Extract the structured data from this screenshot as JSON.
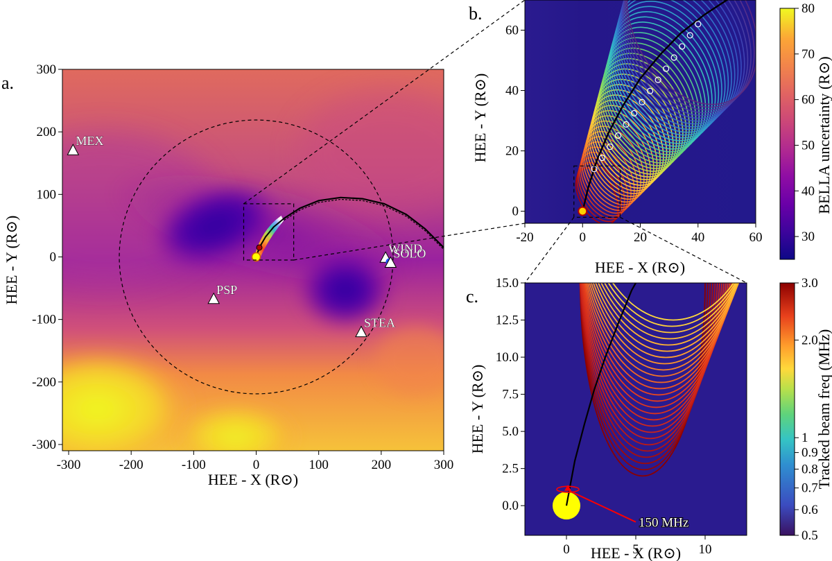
{
  "colors": {
    "plasma_stops": [
      "#0d0887",
      "#3d049c",
      "#6a00a8",
      "#8f0da4",
      "#b12a90",
      "#cc4778",
      "#e16462",
      "#f2844b",
      "#fca636",
      "#f0f921"
    ],
    "viridis_stops": [
      "#440154",
      "#3b528b",
      "#21918c",
      "#5ec962",
      "#fde725"
    ],
    "spectral_stops": [
      "#5e2a7e",
      "#3b4cc0",
      "#2f8fd0",
      "#35c4c4",
      "#5fd37b",
      "#b8e04b",
      "#ffd93b",
      "#ff9e2c",
      "#f45a24",
      "#b30000"
    ],
    "sun": "#ffff00",
    "annotation_red": "#ff0000"
  },
  "chart_data": [
    {
      "id": "a",
      "type": "heatmap",
      "panel_label": "a.",
      "xlabel": "HEE - X  (R⊙)",
      "ylabel": "HEE - Y  (R⊙)",
      "xlim": [
        -310,
        300
      ],
      "ylim": [
        -310,
        300
      ],
      "xticks": [
        -300,
        -200,
        -100,
        0,
        100,
        200,
        300
      ],
      "yticks": [
        -300,
        -200,
        -100,
        0,
        100,
        200,
        300
      ],
      "dashed_circle_radius": 219,
      "spacecraft": [
        {
          "name": "MEX",
          "x": -293,
          "y": 170
        },
        {
          "name": "PSP",
          "x": -68,
          "y": -68
        },
        {
          "name": "WIND",
          "x": 207,
          "y": -2
        },
        {
          "name": "SOLO",
          "x": 215,
          "y": -10
        },
        {
          "name": "STEA",
          "x": 168,
          "y": -121
        }
      ],
      "inset_box": {
        "x": [
          -20,
          60
        ],
        "y": [
          -5,
          85
        ]
      },
      "trajectory": [
        [
          0,
          0
        ],
        [
          5,
          15
        ],
        [
          15,
          32
        ],
        [
          28,
          48
        ],
        [
          45,
          62
        ],
        [
          70,
          78
        ],
        [
          100,
          90
        ],
        [
          135,
          95
        ],
        [
          170,
          93
        ],
        [
          205,
          85
        ],
        [
          240,
          68
        ],
        [
          270,
          45
        ],
        [
          300,
          15
        ]
      ]
    },
    {
      "id": "b",
      "type": "scatter",
      "panel_label": "b.",
      "xlabel": "HEE - X  (R⊙)",
      "ylabel": "HEE - Y  (R⊙)",
      "xlim": [
        -20,
        60
      ],
      "ylim": [
        -4,
        70
      ],
      "xticks": [
        -20,
        0,
        20,
        40,
        60
      ],
      "yticks": [
        0,
        20,
        40,
        60
      ],
      "colorbar": {
        "label": "BELLA uncertainty (R⊙)",
        "min": 25,
        "max": 80,
        "ticks": [
          30,
          40,
          50,
          60,
          70,
          80
        ]
      },
      "trajectory": [
        [
          0,
          0
        ],
        [
          2,
          8
        ],
        [
          5,
          17
        ],
        [
          9,
          26
        ],
        [
          14,
          35
        ],
        [
          20,
          44
        ],
        [
          27,
          52
        ],
        [
          34,
          59
        ],
        [
          42,
          65
        ],
        [
          50,
          70
        ],
        [
          58,
          74
        ]
      ],
      "inset_box": {
        "x": [
          -3,
          13
        ],
        "y": [
          -2,
          15
        ]
      }
    },
    {
      "id": "c",
      "type": "scatter",
      "panel_label": "c.",
      "xlabel": "HEE - X  (R⊙)",
      "ylabel": "HEE - Y  (R⊙)",
      "xlim": [
        -3,
        13
      ],
      "ylim": [
        -2,
        15
      ],
      "xticks": [
        0,
        5,
        10
      ],
      "yticks": [
        0.0,
        2.5,
        5.0,
        7.5,
        10.0,
        12.5,
        15.0
      ],
      "colorbar": {
        "label": "Tracked beam freq (MHz)",
        "min": 0.5,
        "max": 3.0,
        "ticks": [
          0.5,
          0.6,
          0.7,
          0.8,
          0.9,
          1,
          2.0,
          3.0
        ],
        "scale": "log"
      },
      "trajectory": [
        [
          0,
          0
        ],
        [
          0.6,
          3
        ],
        [
          1.3,
          5.5
        ],
        [
          2.0,
          7.8
        ],
        [
          2.8,
          10
        ],
        [
          3.7,
          12.2
        ],
        [
          4.7,
          14.5
        ],
        [
          5.0,
          15
        ]
      ],
      "annotation": {
        "text": "150 MHz",
        "x": 5.2,
        "y": -1.1
      }
    }
  ]
}
